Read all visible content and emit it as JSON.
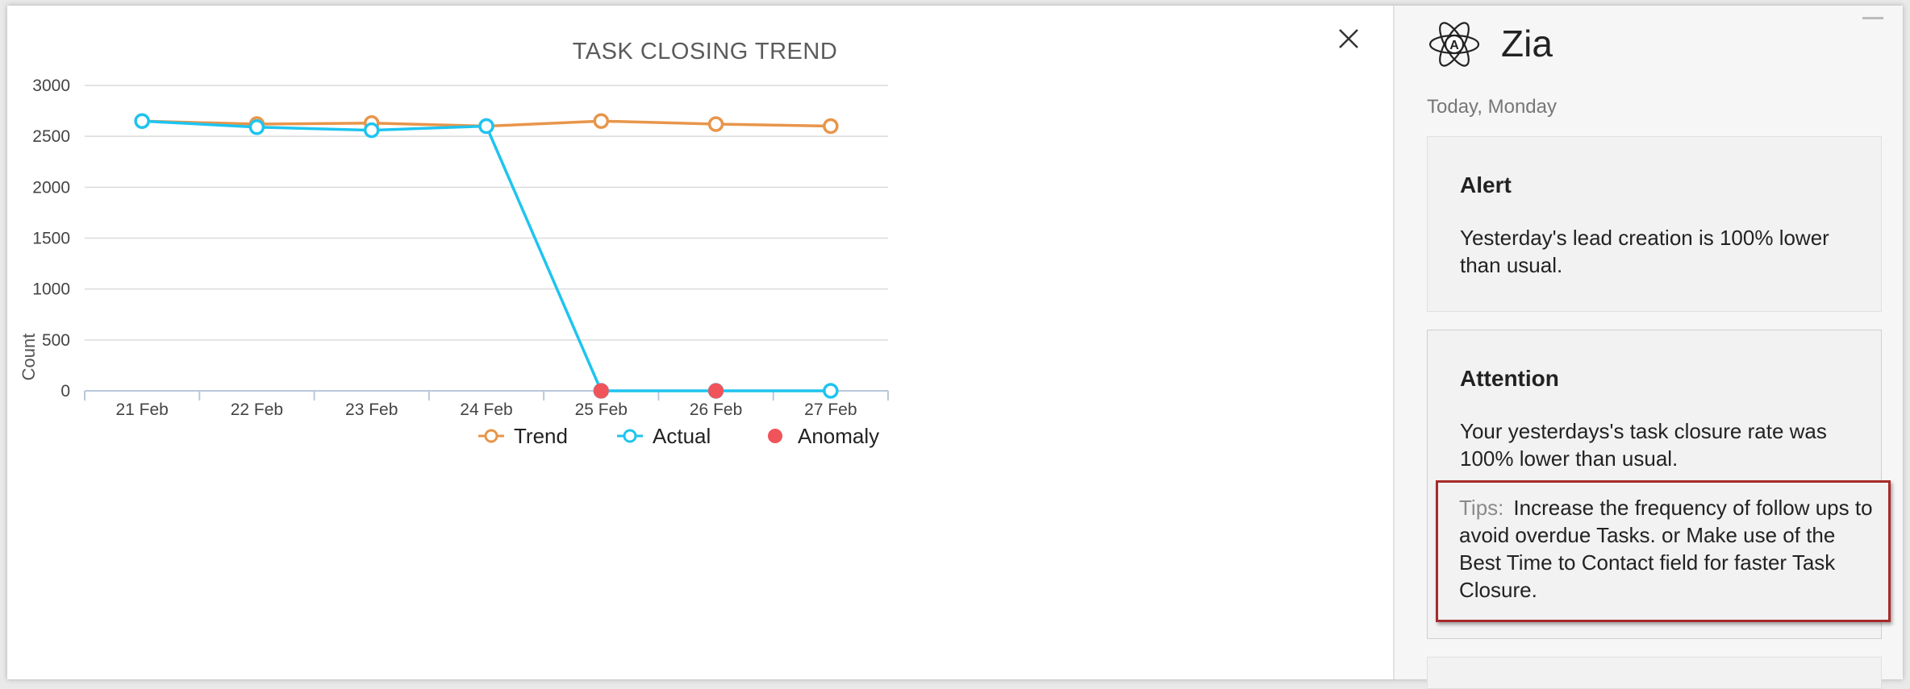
{
  "chart": {
    "close_icon": "close-icon"
  },
  "chart_data": {
    "type": "line",
    "title": "TASK CLOSING TREND",
    "xlabel": "",
    "ylabel": "Count",
    "categories": [
      "21 Feb",
      "22 Feb",
      "23 Feb",
      "24 Feb",
      "25 Feb",
      "26 Feb",
      "27 Feb"
    ],
    "ylim": [
      0,
      3000
    ],
    "yticks": [
      0,
      500,
      1000,
      1500,
      2000,
      2500,
      3000
    ],
    "grid": true,
    "legend_position": "bottom-center",
    "series": [
      {
        "name": "Trend",
        "values": [
          2650,
          2620,
          2630,
          2600,
          2650,
          2620,
          2600
        ],
        "color": "#e8954a",
        "marker": "hollow-circle"
      },
      {
        "name": "Actual",
        "values": [
          2650,
          2590,
          2560,
          2600,
          0,
          0,
          0
        ],
        "color": "#1ec4f0",
        "marker": "hollow-circle"
      }
    ],
    "anomalies": {
      "name": "Anomaly",
      "categories": [
        "25 Feb",
        "26 Feb"
      ],
      "values": [
        0,
        0
      ],
      "color": "#f0545a",
      "marker": "filled-circle"
    }
  },
  "sidebar": {
    "title": "Zia",
    "logo_icon": "zia-atom-icon",
    "date_label": "Today, Monday",
    "cards": [
      {
        "title": "Alert",
        "text": "Yesterday's lead creation is 100% lower than usual."
      },
      {
        "title": "Attention",
        "text": "Your yesterdays's task closure rate was 100% lower than usual.",
        "tips_label": "Tips:",
        "tips_text": "Increase the frequency of follow ups to avoid overdue Tasks. or Make use of the Best Time to Contact field for faster Task Closure."
      }
    ]
  },
  "colors": {
    "trend": "#e8954a",
    "actual": "#1ec4f0",
    "anomaly": "#f0545a",
    "highlight_border": "#a82a2a"
  }
}
